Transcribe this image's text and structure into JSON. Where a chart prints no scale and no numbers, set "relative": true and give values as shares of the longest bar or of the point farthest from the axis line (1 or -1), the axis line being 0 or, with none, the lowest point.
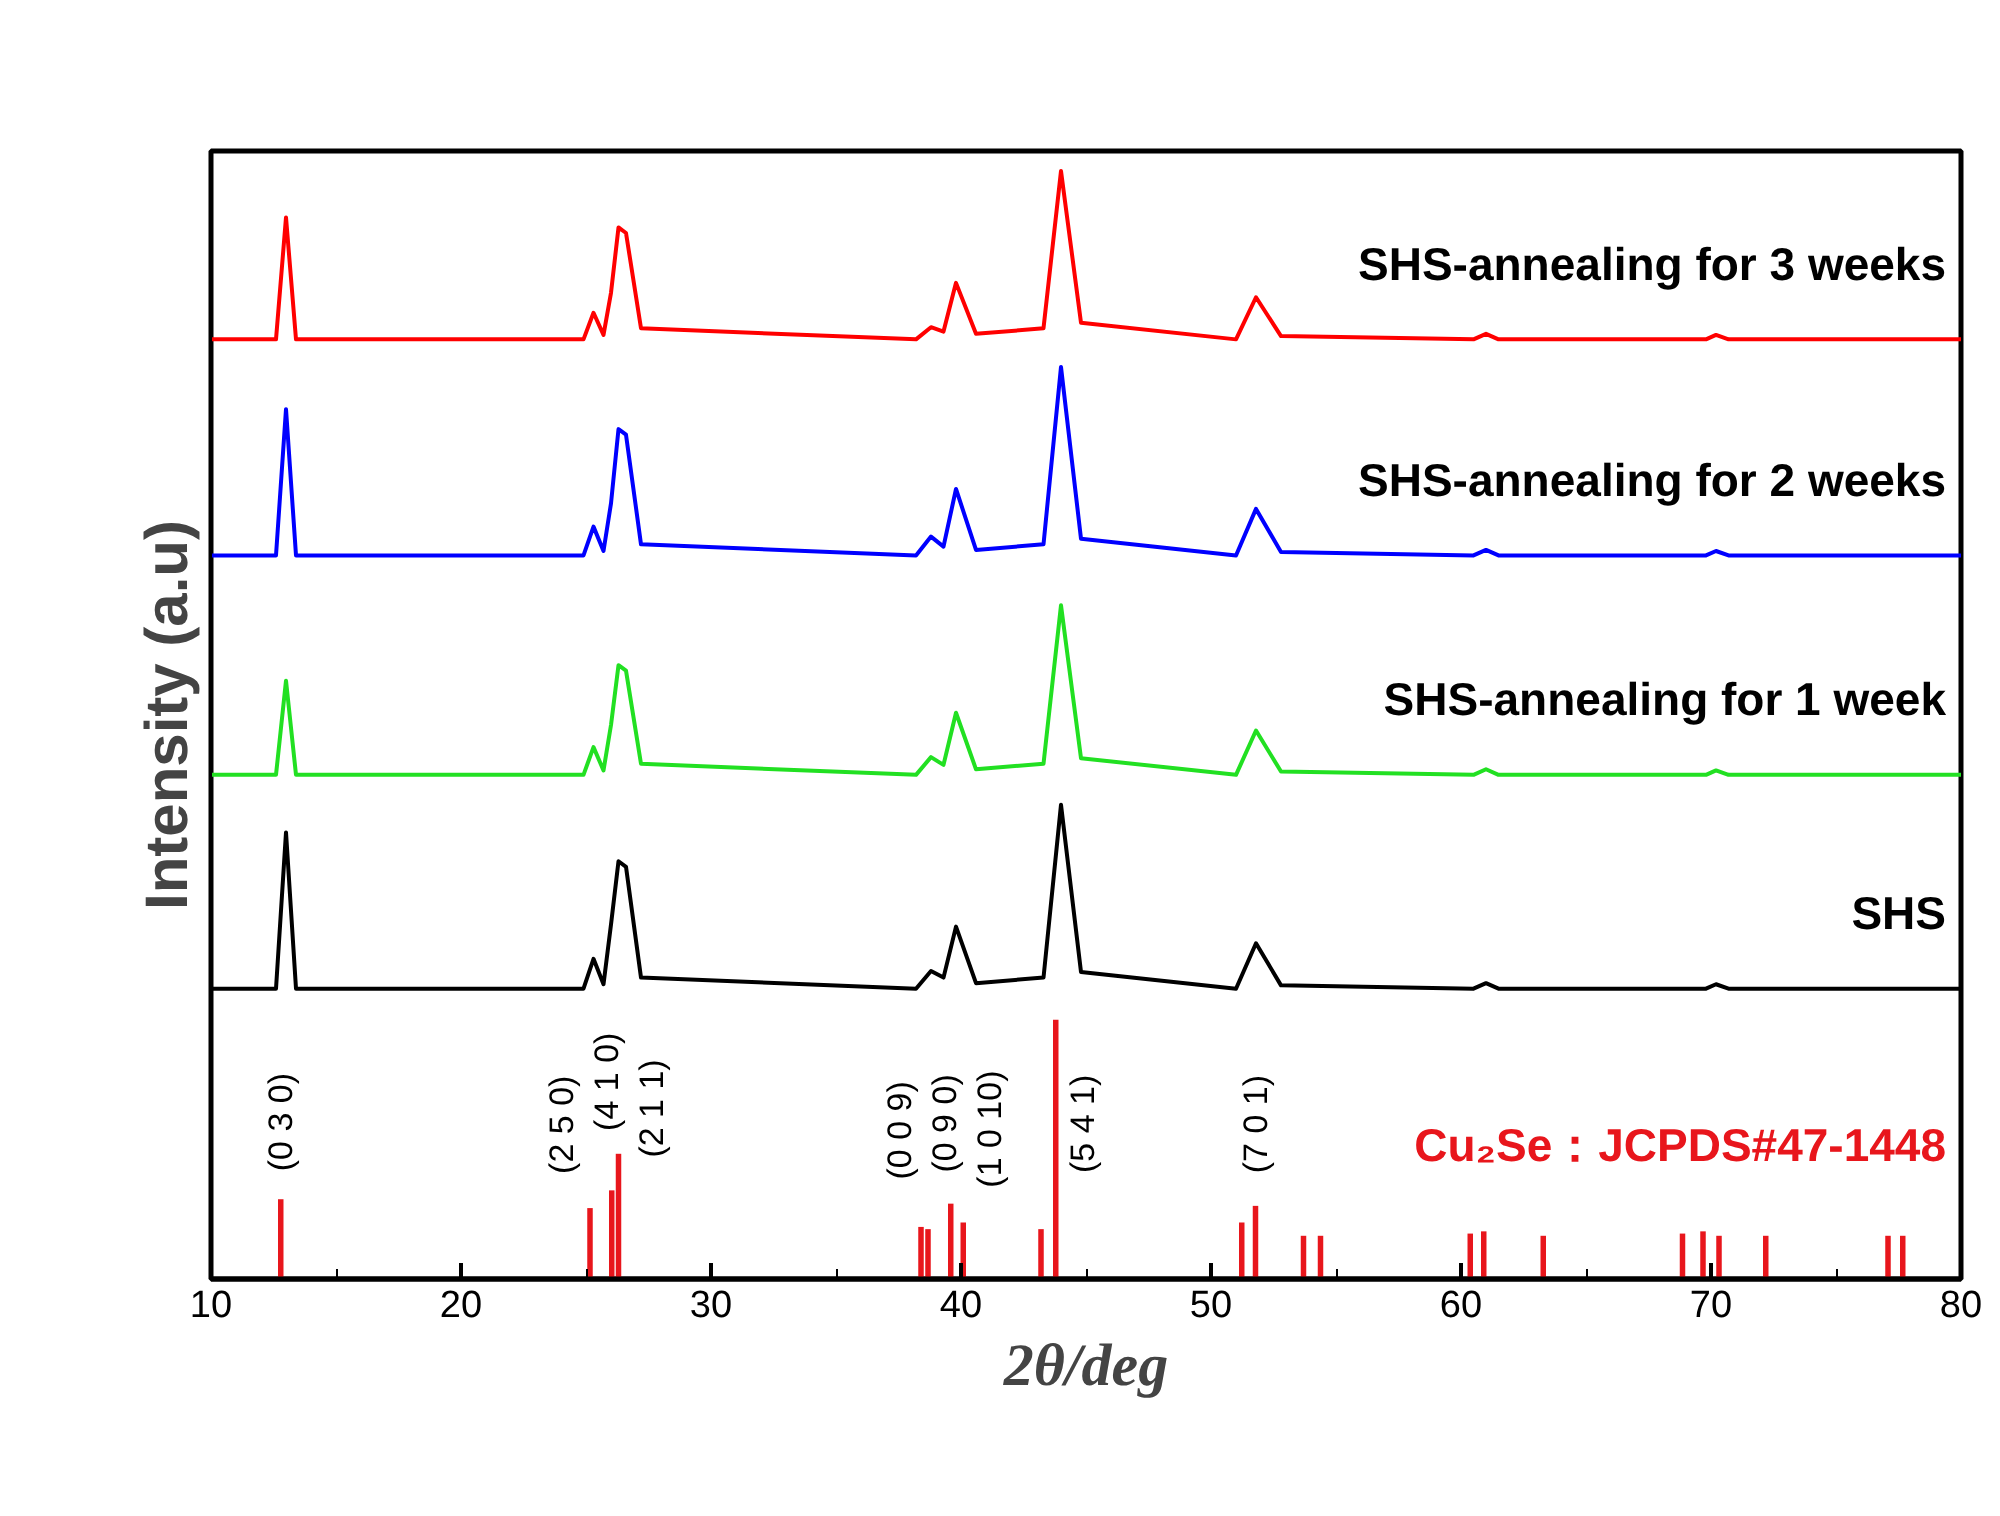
{
  "chart_data": {
    "type": "line",
    "relative": true,
    "xlabel": "2θ/deg",
    "ylabel": "Intensity (a.u)",
    "x": [
      10,
      12.6,
      13.0,
      13.4,
      24.9,
      25.3,
      25.7,
      26.0,
      26.3,
      26.6,
      27.2,
      38.2,
      38.8,
      39.3,
      39.8,
      40.6,
      43.3,
      44.0,
      44.8,
      51.0,
      51.8,
      52.8,
      60.5,
      61.0,
      61.5,
      69.8,
      70.2,
      70.7,
      80
    ],
    "xlim": [
      10,
      80
    ],
    "xticks": [
      10,
      20,
      30,
      40,
      50,
      60,
      70,
      80
    ],
    "grid": false,
    "marker": "none",
    "line_style": "solid",
    "series": [
      {
        "name": "SHS-annealing for 3 weeks",
        "color": "#ff0000",
        "values": [
          0.848,
          0.848,
          0.958,
          0.848,
          0.848,
          0.872,
          0.852,
          0.89,
          0.949,
          0.944,
          0.858,
          0.848,
          0.859,
          0.855,
          0.899,
          0.853,
          0.858,
          1.0,
          0.863,
          0.848,
          0.886,
          0.851,
          0.848,
          0.853,
          0.848,
          0.848,
          0.852,
          0.848,
          0.848
        ]
      },
      {
        "name": "SHS-annealing for 2 weeks",
        "color": "#0000ff",
        "values": [
          0.653,
          0.653,
          0.785,
          0.653,
          0.653,
          0.679,
          0.657,
          0.7,
          0.767,
          0.762,
          0.663,
          0.653,
          0.67,
          0.661,
          0.713,
          0.658,
          0.663,
          0.823,
          0.668,
          0.653,
          0.695,
          0.656,
          0.653,
          0.658,
          0.653,
          0.653,
          0.657,
          0.653,
          0.653
        ]
      },
      {
        "name": "SHS-annealing for 1 week",
        "color": "#22e022",
        "values": [
          0.455,
          0.455,
          0.54,
          0.455,
          0.455,
          0.48,
          0.459,
          0.5,
          0.554,
          0.549,
          0.465,
          0.455,
          0.471,
          0.464,
          0.511,
          0.46,
          0.465,
          0.608,
          0.47,
          0.455,
          0.495,
          0.458,
          0.455,
          0.46,
          0.455,
          0.455,
          0.459,
          0.455,
          0.455
        ]
      },
      {
        "name": "SHS",
        "color": "#000000",
        "values": [
          0.262,
          0.262,
          0.403,
          0.262,
          0.262,
          0.289,
          0.266,
          0.32,
          0.377,
          0.372,
          0.272,
          0.262,
          0.278,
          0.272,
          0.318,
          0.267,
          0.272,
          0.428,
          0.277,
          0.262,
          0.303,
          0.265,
          0.262,
          0.267,
          0.262,
          0.262,
          0.266,
          0.262,
          0.262
        ]
      },
      {
        "type": "bar",
        "color": "#e8161c",
        "x": [
          12.79,
          25.16,
          26.03,
          26.3,
          38.4,
          38.68,
          39.59,
          40.09,
          43.2,
          43.79,
          51.23,
          51.78,
          53.7,
          54.38,
          60.37,
          60.91,
          63.29,
          68.86,
          69.68,
          70.32,
          72.19,
          77.08,
          77.67
        ],
        "values": [
          0.072,
          0.064,
          0.08,
          0.113,
          0.047,
          0.045,
          0.068,
          0.051,
          0.045,
          0.234,
          0.051,
          0.066,
          0.039,
          0.039,
          0.041,
          0.043,
          0.039,
          0.041,
          0.043,
          0.039,
          0.039,
          0.039,
          0.039
        ]
      }
    ],
    "annotations": [
      {
        "text": "(0 3 0)",
        "x": 12.79,
        "y": 0.072
      },
      {
        "text": "(2 5 0)",
        "x": 25.16,
        "y": 0.064
      },
      {
        "text": "(4 1 0)",
        "x": 26.03,
        "y": 0.08
      },
      {
        "text": "(2 1 1)",
        "x": 26.3,
        "y": 0.113
      },
      {
        "text": "(0 0 9)",
        "x": 38.4,
        "y": 0.047
      },
      {
        "text": "(0 9 0)",
        "x": 39.59,
        "y": 0.068
      },
      {
        "text": "(1 0 10)",
        "x": 40.09,
        "y": 0.051
      },
      {
        "text": "(5 4 1)",
        "x": 43.79,
        "y": 0.234
      },
      {
        "text": "(7 0 1)",
        "x": 51.78,
        "y": 0.066
      },
      "Cu₂Se：JCPDS#47-1448"
    ]
  }
}
